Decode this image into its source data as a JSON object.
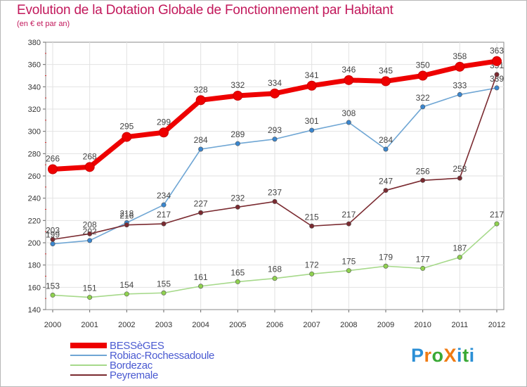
{
  "title": "Evolution de la Dotation Globale de Fonctionnement par Habitant",
  "subtitle": "(en € et par an)",
  "logo": {
    "text": "ProXiti",
    "letters": [
      "P",
      "r",
      "o",
      "X",
      "i",
      "t",
      "i"
    ],
    "colors": [
      "#2b8fd6",
      "#f07b12",
      "#39a935",
      "#f07b12",
      "#2b8fd6",
      "#39a935",
      "#2b8fd6"
    ]
  },
  "chart_data": {
    "type": "line",
    "title": "Evolution de la Dotation Globale de Fonctionnement par Habitant",
    "subtitle": "(en € et par an)",
    "xlabel": "",
    "ylabel": "",
    "ylim": [
      140,
      380
    ],
    "yticks": [
      140,
      160,
      180,
      200,
      220,
      240,
      260,
      280,
      300,
      320,
      340,
      360,
      380
    ],
    "grid": true,
    "legend_position": "bottom-left",
    "categories": [
      "2000",
      "2001",
      "2002",
      "2003",
      "2004",
      "2005",
      "2006",
      "2007",
      "2008",
      "2009",
      "2010",
      "2011",
      "2012"
    ],
    "series": [
      {
        "name": "BESSèGES",
        "color": "#ee0000",
        "values": [
          266,
          268,
          295,
          299,
          328,
          332,
          334,
          341,
          346,
          345,
          350,
          358,
          363
        ],
        "labels": [
          "266",
          "268",
          "295",
          "299",
          "328",
          "332",
          "334",
          "341",
          "346",
          "345",
          "350",
          "358",
          "363"
        ]
      },
      {
        "name": "Robiac-Rochessadoule",
        "color": "#6fa6d4",
        "marker": "#3a86cf",
        "values": [
          199,
          202,
          218,
          234,
          284,
          289,
          293,
          301,
          308,
          284,
          322,
          333,
          339
        ],
        "labels": [
          "199",
          "202",
          "218",
          "234",
          "284",
          "289",
          "293",
          "301",
          "308",
          "284",
          "322",
          "333",
          "339"
        ]
      },
      {
        "name": "Bordezac",
        "color": "#a6d98a",
        "marker": "#8fd14f",
        "values": [
          153,
          151,
          154,
          155,
          161,
          165,
          168,
          172,
          175,
          179,
          177,
          187,
          217
        ],
        "labels": [
          "153",
          "151",
          "154",
          "155",
          "161",
          "165",
          "168",
          "172",
          "175",
          "179",
          "177",
          "187",
          "217"
        ]
      },
      {
        "name": "Peyremale",
        "color": "#7a2a30",
        "marker": "#7a2a30",
        "values": [
          203,
          208,
          216,
          217,
          227,
          232,
          237,
          215,
          217,
          247,
          256,
          258,
          351
        ],
        "labels": [
          "203",
          "208",
          "216",
          "217",
          "227",
          "232",
          "237",
          "215",
          "217",
          "247",
          "256",
          "258",
          "351"
        ]
      }
    ]
  }
}
